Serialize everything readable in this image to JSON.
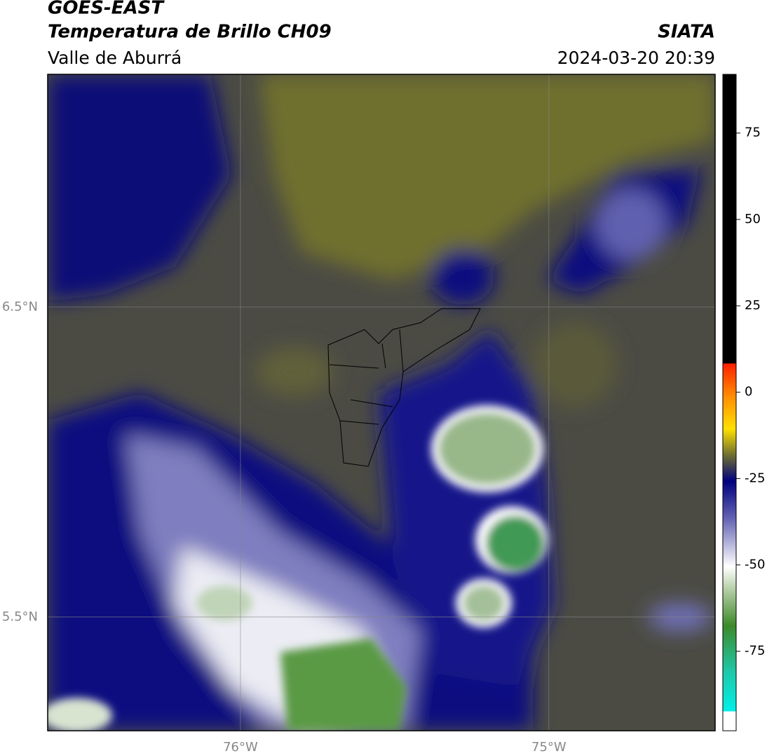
{
  "header": {
    "title": "GOES-EAST",
    "subtitle": "Temperatura de Brillo CH09",
    "region": "Valle de Aburrá",
    "agency": "SIATA",
    "timestamp": "2024-03-20 20:39"
  },
  "map": {
    "lonlim": [
      -76.625,
      -74.461
    ],
    "latlim": [
      5.133,
      7.251
    ],
    "lonticks": [
      {
        "value": -76,
        "label": "76°W"
      },
      {
        "value": -75,
        "label": "75°W"
      }
    ],
    "latticks": [
      {
        "value": 6.5,
        "label": "6.5°N"
      },
      {
        "value": 5.5,
        "label": "5.5°N"
      }
    ]
  },
  "colorbar": {
    "lim": [
      -98,
      92
    ],
    "ticks": [
      75,
      50,
      25,
      0,
      -25,
      -50,
      -75
    ]
  }
}
